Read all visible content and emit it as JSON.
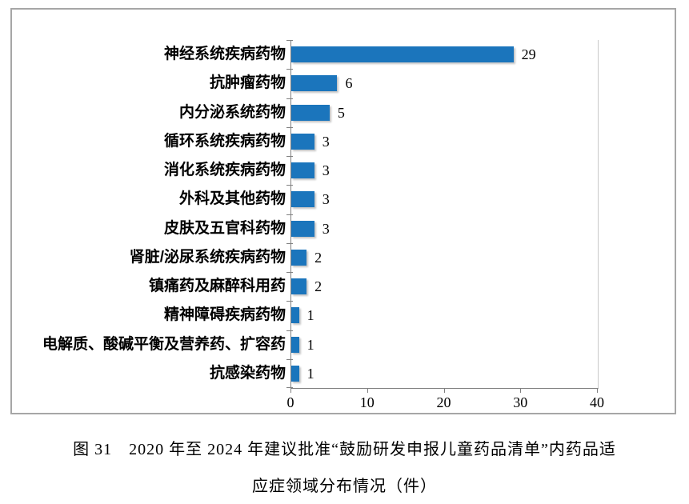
{
  "chart_data": {
    "type": "bar",
    "orientation": "horizontal",
    "categories": [
      "神经系统疾病药物",
      "抗肿瘤药物",
      "内分泌系统药物",
      "循环系统疾病药物",
      "消化系统疾病药物",
      "外科及其他药物",
      "皮肤及五官科药物",
      "肾脏/泌尿系统疾病药物",
      "镇痛药及麻醉科用药",
      "精神障碍疾病药物",
      "电解质、酸碱平衡及营养药、扩容药",
      "抗感染药物"
    ],
    "values": [
      29,
      6,
      5,
      3,
      3,
      3,
      3,
      2,
      2,
      1,
      1,
      1
    ],
    "title": "",
    "xlabel": "",
    "ylabel": "",
    "xlim": [
      0,
      40
    ],
    "x_ticks": [
      0,
      10,
      20,
      30,
      40
    ],
    "grid": false,
    "legend": false,
    "value_labels_shown": true,
    "bar_color": "#1b75bc"
  },
  "caption": {
    "line1": "图 31　2020 年至 2024 年建议批准“鼓励研发申报儿童药品清单”内药品适",
    "line2": "应症领域分布情况（件）"
  },
  "colors": {
    "bar": "#1b75bc",
    "axis": "#808080",
    "box_border": "#a6a6a6",
    "plot_right_border": "#c9c9c9",
    "text": "#000000"
  }
}
